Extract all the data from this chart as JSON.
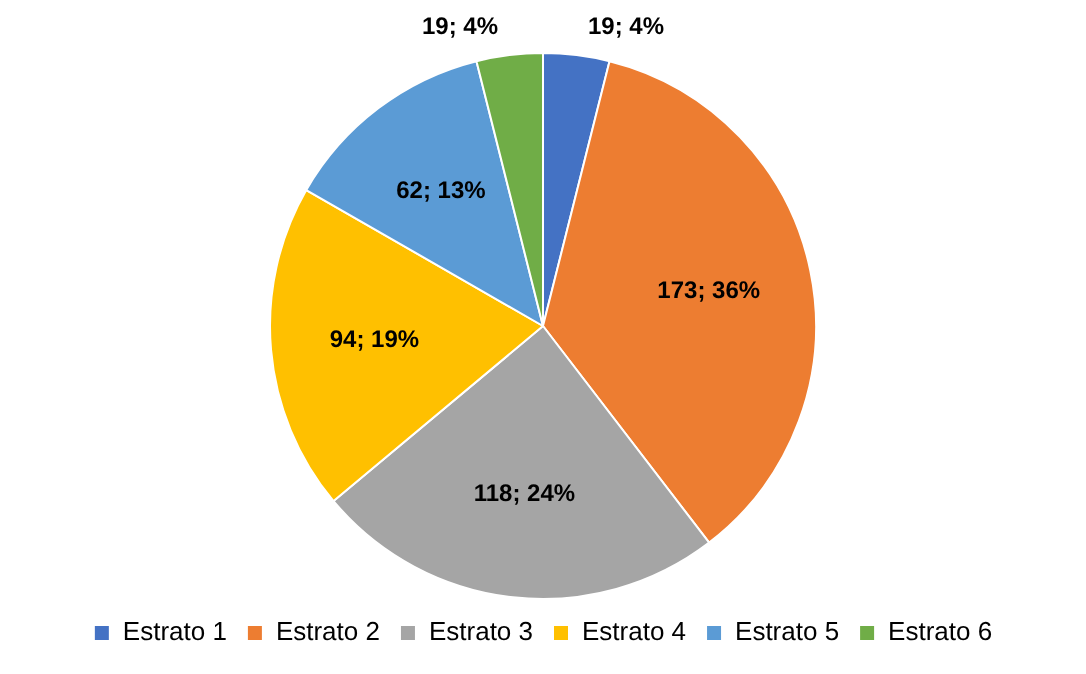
{
  "chart_data": {
    "type": "pie",
    "categories": [
      "Estrato 1",
      "Estrato 2",
      "Estrato 3",
      "Estrato 4",
      "Estrato 5",
      "Estrato 6"
    ],
    "values": [
      19,
      173,
      118,
      94,
      62,
      19
    ],
    "colors": [
      "#4472c4",
      "#ed7d31",
      "#a5a5a5",
      "#ffc000",
      "#5b9bd5",
      "#70ad47"
    ],
    "value_labels": [
      "19; 4%",
      "173; 36%",
      "118; 24%",
      "94; 19%",
      "62; 13%",
      "19; 4%"
    ],
    "legend": "bottom"
  }
}
